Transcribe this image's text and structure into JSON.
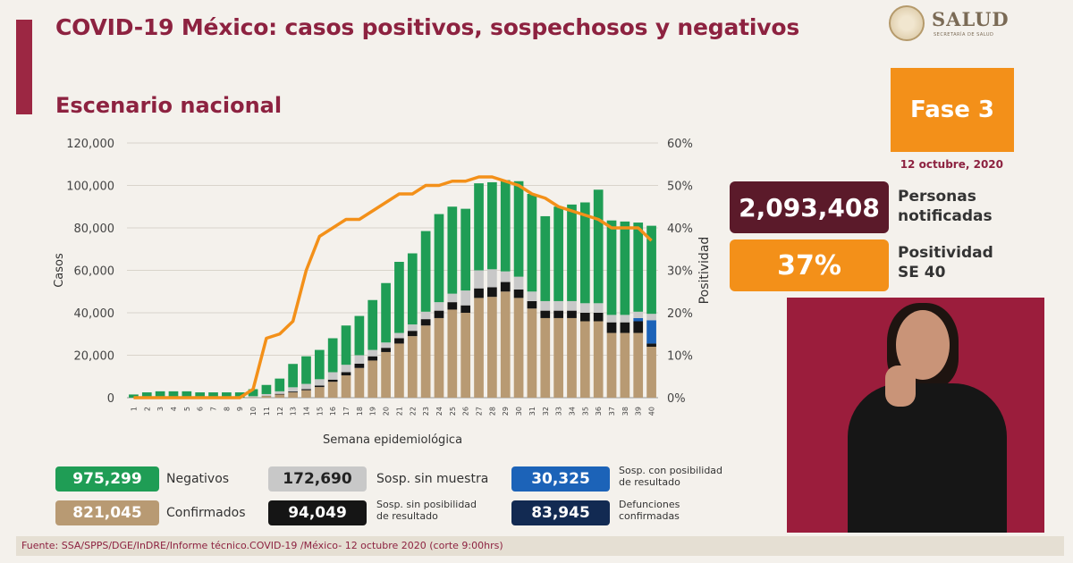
{
  "header": {
    "title": "COVID-19 México: casos positivos, sospechosos y negativos",
    "subtitle": "Escenario nacional",
    "logo_text": "SALUD",
    "logo_subtext": "SECRETARÍA DE SALUD"
  },
  "phase_label": "Fase 3",
  "date": "12 octubre, 2020",
  "notified": {
    "value": "2,093,408",
    "label_line1": "Personas",
    "label_line2": "notificadas"
  },
  "positivity": {
    "value": "37%",
    "label_line1": "Positividad",
    "label_line2": "SE 40"
  },
  "legend": {
    "negativos": {
      "value": "975,299",
      "label": "Negativos"
    },
    "sosp_sin_muestra": {
      "value": "172,690",
      "label": "Sosp. sin muestra"
    },
    "sosp_con_posibilidad": {
      "value": "30,325",
      "label_line1": "Sosp. con posibilidad",
      "label_line2": "de resultado"
    },
    "confirmados": {
      "value": "821,045",
      "label": "Confirmados"
    },
    "sosp_sin_posibilidad": {
      "value": "94,049",
      "label_line1": "Sosp. sin posibilidad",
      "label_line2": "de resultado"
    },
    "defunciones": {
      "value": "83,945",
      "label_line1": "Defunciones",
      "label_line2": "confirmadas"
    }
  },
  "source": "Fuente: SSA/SPPS/DGE/InDRE/Informe técnico.COVID-19 /México- 12 octubre 2020 (corte 9:00hrs)",
  "colors": {
    "negativos": "#1f9d55",
    "confirmados": "#b89a73",
    "sosp_sin_muestra": "#c8c8c8",
    "sosp_sin_posibilidad": "#151515",
    "sosp_con_posibilidad": "#1c63b8",
    "defunciones": "#122a52",
    "positivity_line": "#f39019"
  },
  "chart_data": {
    "type": "bar",
    "stacked": true,
    "xlabel": "Semana epidemiológica",
    "ylabel": "Casos",
    "y2label": "Positividad",
    "ylim": [
      0,
      120000
    ],
    "yticks": [
      "0",
      "20,000",
      "40,000",
      "60,000",
      "80,000",
      "100,000",
      "120,000"
    ],
    "y2lim": [
      0,
      60
    ],
    "y2ticks": [
      "0%",
      "10%",
      "20%",
      "30%",
      "40%",
      "50%",
      "60%"
    ],
    "categories": [
      "1",
      "2",
      "3",
      "4",
      "5",
      "6",
      "7",
      "8",
      "9",
      "10",
      "11",
      "12",
      "13",
      "14",
      "15",
      "16",
      "17",
      "18",
      "19",
      "20",
      "21",
      "22",
      "23",
      "24",
      "25",
      "26",
      "27",
      "28",
      "29",
      "30",
      "31",
      "32",
      "33",
      "34",
      "35",
      "36",
      "37",
      "38",
      "39",
      "40"
    ],
    "series": [
      {
        "key": "confirmados",
        "values": [
          0,
          0,
          0,
          0,
          0,
          0,
          0,
          0,
          0,
          200,
          800,
          1500,
          2500,
          3500,
          5000,
          7500,
          10500,
          14000,
          17500,
          21500,
          25500,
          29000,
          34000,
          37500,
          41500,
          40000,
          47000,
          47500,
          50000,
          47000,
          42000,
          37500,
          37500,
          37500,
          36000,
          36000,
          30500,
          30500,
          30500,
          24000
        ]
      },
      {
        "key": "sosp_sin_posibilidad",
        "values": [
          0,
          0,
          0,
          0,
          0,
          0,
          0,
          0,
          0,
          0,
          100,
          300,
          400,
          500,
          700,
          1000,
          1500,
          2000,
          2000,
          2000,
          2500,
          2500,
          3000,
          3500,
          3500,
          3500,
          4500,
          4500,
          4500,
          4000,
          3500,
          3500,
          3500,
          3500,
          4000,
          4000,
          5000,
          5000,
          5500,
          1500
        ]
      },
      {
        "key": "sosp_con_posibilidad",
        "values": [
          0,
          0,
          0,
          0,
          0,
          0,
          0,
          0,
          0,
          0,
          0,
          0,
          0,
          0,
          0,
          0,
          0,
          0,
          0,
          0,
          0,
          0,
          0,
          0,
          0,
          0,
          0,
          0,
          0,
          0,
          0,
          0,
          0,
          0,
          0,
          0,
          0,
          0,
          1500,
          11000
        ]
      },
      {
        "key": "sosp_sin_muestra",
        "values": [
          0,
          0,
          0,
          0,
          0,
          0,
          0,
          0,
          0,
          500,
          800,
          1200,
          2000,
          2500,
          3000,
          3500,
          3500,
          4000,
          3000,
          2500,
          2500,
          3000,
          3500,
          4000,
          4000,
          7000,
          8500,
          8500,
          5000,
          6000,
          4500,
          4500,
          4500,
          4500,
          4500,
          4500,
          3500,
          3500,
          3000,
          3000
        ]
      },
      {
        "key": "negativos",
        "values": [
          1500,
          2500,
          3000,
          3000,
          3000,
          2500,
          2500,
          2500,
          2500,
          3300,
          4300,
          6000,
          11000,
          13000,
          13800,
          16000,
          18500,
          18500,
          23500,
          28000,
          33500,
          33500,
          38000,
          41500,
          41000,
          38500,
          41000,
          41000,
          43000,
          45000,
          46000,
          40000,
          44500,
          45500,
          47500,
          53500,
          44500,
          44000,
          42000,
          41500
        ]
      }
    ],
    "positivity_pct": [
      0,
      0,
      0,
      0,
      0,
      0,
      0,
      0,
      0,
      2,
      14,
      15,
      18,
      30,
      38,
      40,
      42,
      42,
      44,
      46,
      48,
      48,
      50,
      50,
      51,
      51,
      52,
      52,
      51,
      50,
      48,
      47,
      45,
      44,
      43,
      42,
      40,
      40,
      40,
      37
    ]
  }
}
